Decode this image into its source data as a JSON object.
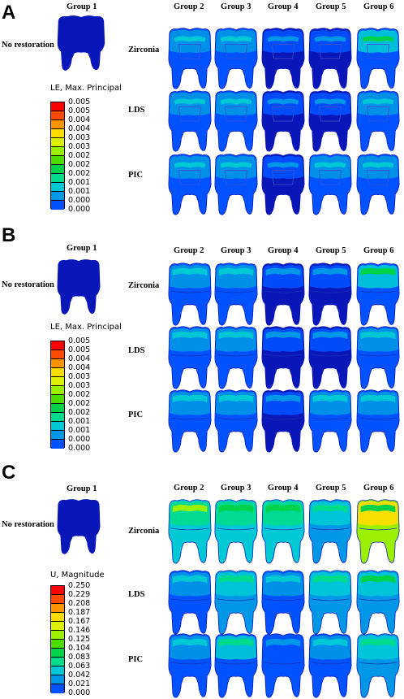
{
  "panels": [
    {
      "letter": "A",
      "group1_label": "Group 1",
      "no_restoration_label": "No restoration",
      "group_labels": [
        "Group 2",
        "Group 3",
        "Group 4",
        "Group 5",
        "Group 6"
      ],
      "row_labels": [
        "Zirconia",
        "LDS",
        "PIC"
      ],
      "legend_title": "LE, Max. Principal",
      "legend_values": [
        "0.005",
        "0.005",
        "0.004",
        "0.004",
        "0.003",
        "0.003",
        "0.002",
        "0.002",
        "0.002",
        "0.001",
        "0.001",
        "0.000",
        "0.000"
      ],
      "view": "sagittal section"
    },
    {
      "letter": "B",
      "group1_label": "Group 1",
      "no_restoration_label": "No restoration",
      "group_labels": [
        "Group 2",
        "Group 3",
        "Group 4",
        "Group 5",
        "Group 6"
      ],
      "row_labels": [
        "Zirconia",
        "LDS",
        "PIC"
      ],
      "legend_title": "LE, Max. Principal",
      "legend_values": [
        "0.005",
        "0.005",
        "0.004",
        "0.004",
        "0.003",
        "0.003",
        "0.002",
        "0.002",
        "0.002",
        "0.001",
        "0.001",
        "0.000",
        "0.000"
      ],
      "view": "external"
    },
    {
      "letter": "C",
      "group1_label": "Group 1",
      "no_restoration_label": "No restoration",
      "group_labels": [
        "Group 2",
        "Group 3",
        "Group 4",
        "Group 5",
        "Group 6"
      ],
      "row_labels": [
        "Zirconia",
        "LDS",
        "PIC"
      ],
      "legend_title": "U, Magnitude",
      "legend_values": [
        "0.250",
        "0.229",
        "0.208",
        "0.187",
        "0.167",
        "0.146",
        "0.125",
        "0.104",
        "0.083",
        "0.063",
        "0.042",
        "0.021",
        "0.000"
      ],
      "view": "external"
    }
  ],
  "colors": {
    "contour_scale": [
      "#ff0000",
      "#ff4a00",
      "#ff9400",
      "#ffdc00",
      "#ddf200",
      "#9bf000",
      "#4cdc00",
      "#00d24a",
      "#00dc8c",
      "#00c9d6",
      "#0097e6",
      "#0052ff",
      "#0a17b8"
    ]
  }
}
